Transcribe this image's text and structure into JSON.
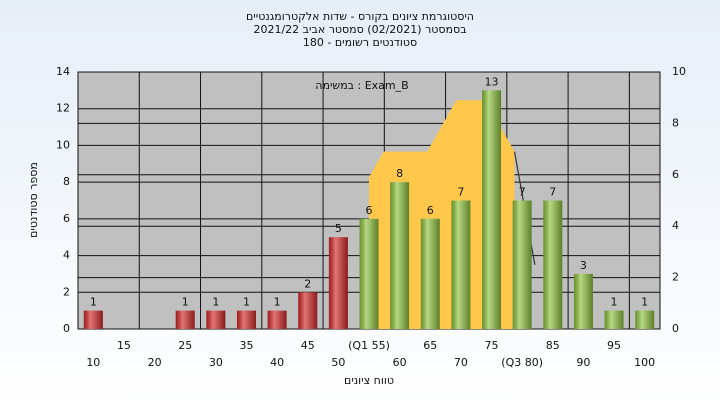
{
  "chart_data": {
    "type": "bar",
    "title": [
      "היסטוגרמת ציונים בקורס - שדות אלקטרומגנטיים",
      "בסמסטר (02/2021) סמסטר אביב 2021/22",
      "סטודנטים רשומים - 180"
    ],
    "annotation": "Exam_B : במשימה",
    "xlabel": "טווח ציונים",
    "ylabel": "מספר סטודנטים",
    "categories": [
      "10",
      "15",
      "20",
      "25",
      "30",
      "35",
      "40",
      "45",
      "50",
      "(Q1 55)",
      "60",
      "65",
      "70",
      "75",
      "(Q3 80)",
      "85",
      "90",
      "95",
      "100"
    ],
    "values": [
      1,
      0,
      0,
      1,
      1,
      1,
      1,
      2,
      5,
      6,
      8,
      6,
      7,
      13,
      7,
      7,
      3,
      1,
      1
    ],
    "colors": [
      "#d42a2a",
      "#d42a2a",
      "#d42a2a",
      "#d42a2a",
      "#d42a2a",
      "#d42a2a",
      "#d42a2a",
      "#d42a2a",
      "#d42a2a",
      "#8fc43f",
      "#8fc43f",
      "#8fc43f",
      "#8fc43f",
      "#8fc43f",
      "#8fc43f",
      "#8fc43f",
      "#8fc43f",
      "#8fc43f",
      "#8fc43f"
    ],
    "ylim": [
      0,
      14
    ],
    "yticks": [
      0,
      2,
      4,
      6,
      8,
      10,
      12,
      14
    ],
    "y2lim": [
      0,
      10
    ],
    "y2ticks": [
      0,
      2,
      4,
      6,
      8,
      10
    ],
    "xlim": [
      5,
      105
    ],
    "area": {
      "type": "area",
      "axis": "y2",
      "color": "#ffc84a",
      "x": [
        55,
        57.5,
        65,
        70,
        75,
        80
      ],
      "values": [
        5.9,
        6.9,
        6.9,
        8.9,
        8.9,
        6.9
      ]
    },
    "line": {
      "type": "line",
      "axis": "y2",
      "color": "#333333",
      "x": [
        80,
        83.5
      ],
      "values": [
        6.9,
        2.5
      ]
    },
    "grid": true
  }
}
